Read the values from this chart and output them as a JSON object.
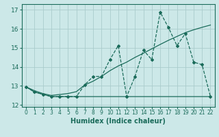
{
  "xlabel": "Humidex (Indice chaleur)",
  "xlim": [
    -0.5,
    22.5
  ],
  "ylim": [
    11.9,
    17.3
  ],
  "yticks": [
    12,
    13,
    14,
    15,
    16,
    17
  ],
  "xticks": [
    0,
    1,
    2,
    3,
    4,
    5,
    6,
    7,
    8,
    9,
    10,
    11,
    12,
    13,
    14,
    15,
    16,
    17,
    18,
    19,
    20,
    21,
    22
  ],
  "bg_color": "#cce8e8",
  "grid_color": "#aacccc",
  "line_color": "#1a6b5a",
  "line_jagged_x": [
    0,
    1,
    2,
    3,
    4,
    5,
    6,
    7,
    8,
    9,
    10,
    11,
    12,
    13,
    14,
    15,
    16,
    17,
    18,
    19,
    20,
    21,
    22
  ],
  "line_jagged_y": [
    12.95,
    12.68,
    12.56,
    12.44,
    12.44,
    12.44,
    12.44,
    13.06,
    13.5,
    13.5,
    14.38,
    15.12,
    12.44,
    13.5,
    14.88,
    14.38,
    16.88,
    16.06,
    15.12,
    15.75,
    14.25,
    14.12,
    12.44
  ],
  "line_trend_x": [
    0,
    1,
    2,
    3,
    4,
    5,
    6,
    7,
    8,
    9,
    10,
    11,
    12,
    13,
    14,
    15,
    16,
    17,
    18,
    19,
    20,
    21,
    22
  ],
  "line_trend_y": [
    12.95,
    12.75,
    12.6,
    12.5,
    12.55,
    12.6,
    12.7,
    13.05,
    13.25,
    13.5,
    13.8,
    14.05,
    14.25,
    14.5,
    14.72,
    14.95,
    15.18,
    15.4,
    15.6,
    15.8,
    15.95,
    16.08,
    16.2
  ],
  "line_flat_x": [
    0,
    1,
    2,
    3,
    4,
    5,
    6,
    7,
    8,
    9,
    10,
    11,
    12,
    13,
    14,
    15,
    16,
    17,
    18,
    19,
    20,
    21,
    22
  ],
  "line_flat_y": [
    12.95,
    12.68,
    12.56,
    12.44,
    12.44,
    12.44,
    12.44,
    12.44,
    12.44,
    12.44,
    12.44,
    12.44,
    12.44,
    12.44,
    12.44,
    12.44,
    12.44,
    12.44,
    12.44,
    12.44,
    12.44,
    12.44,
    12.44
  ]
}
